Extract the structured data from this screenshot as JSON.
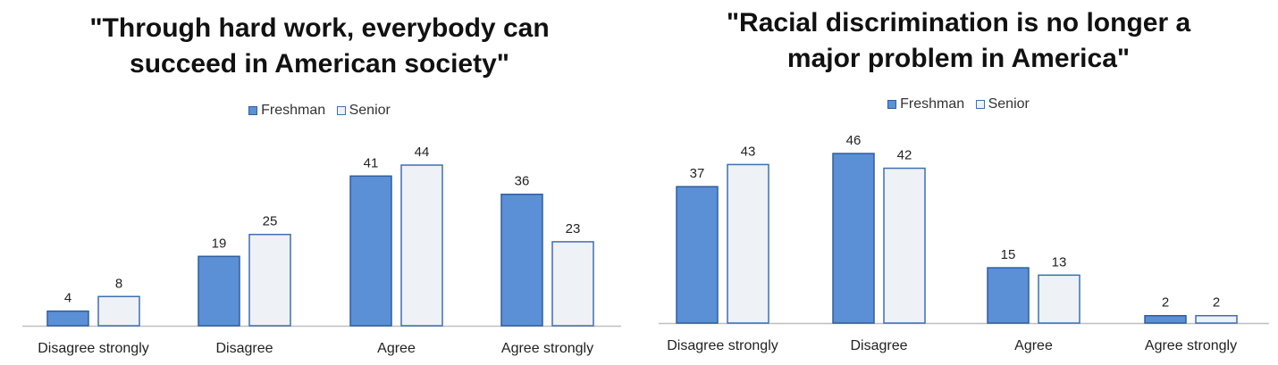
{
  "colors": {
    "freshman": "#5b8fd6",
    "freshman_stroke": "#2f5f9e",
    "senior": "#eef1f5",
    "senior_stroke": "#3d6fb3",
    "axis": "#bfbfbf"
  },
  "chart_data": [
    {
      "type": "bar",
      "title_lines": [
        "\"Through hard work, everybody can",
        "succeed in American society\""
      ],
      "title": "\"Through hard work, everybody can succeed in American society\"",
      "categories": [
        "Disagree strongly",
        "Disagree",
        "Agree",
        "Agree strongly"
      ],
      "series": [
        {
          "name": "Freshman",
          "values": [
            4,
            19,
            41,
            36
          ]
        },
        {
          "name": "Senior",
          "values": [
            8,
            25,
            44,
            23
          ]
        }
      ],
      "ylim": [
        0,
        44
      ],
      "legend": "top-center",
      "grid": false,
      "data_labels": true
    },
    {
      "type": "bar",
      "title_lines": [
        "\"Racial discrimination is no longer a",
        "major problem in America\""
      ],
      "title": "\"Racial discrimination is no longer a major problem in America\"",
      "categories": [
        "Disagree strongly",
        "Disagree",
        "Agree",
        "Agree strongly"
      ],
      "series": [
        {
          "name": "Freshman",
          "values": [
            37,
            46,
            15,
            2
          ]
        },
        {
          "name": "Senior",
          "values": [
            43,
            42,
            13,
            2
          ]
        }
      ],
      "ylim": [
        0,
        46
      ],
      "legend": "top-center",
      "grid": false,
      "data_labels": true
    }
  ]
}
